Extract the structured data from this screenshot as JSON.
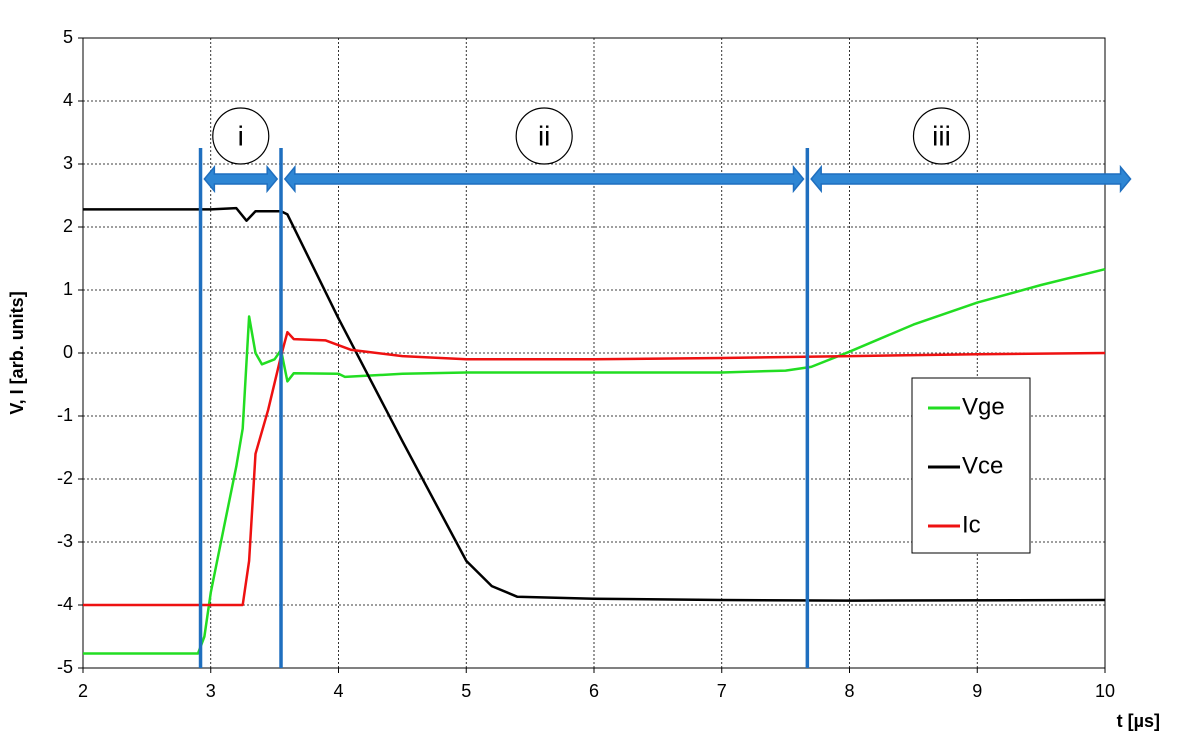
{
  "chart_data": {
    "type": "line",
    "x_label": "t [µs]",
    "y_label": "V, I [arb. units]",
    "xlim": [
      2,
      10
    ],
    "xticks": [
      2,
      3,
      4,
      5,
      6,
      7,
      8,
      9,
      10
    ],
    "ylim": [
      -5,
      5
    ],
    "yticks": [
      -5,
      -4,
      -3,
      -2,
      -1,
      0,
      1,
      2,
      3,
      4,
      5
    ],
    "grid": true,
    "series": [
      {
        "name": "Vge",
        "color": "#22dd22",
        "x": [
          2,
          2.9,
          2.95,
          3.0,
          3.1,
          3.2,
          3.25,
          3.3,
          3.35,
          3.4,
          3.5,
          3.55,
          3.6,
          3.65,
          4,
          4.05,
          4.5,
          5,
          6,
          7,
          7.5,
          7.7,
          8,
          8.5,
          9,
          9.5,
          10
        ],
        "values": [
          -4.77,
          -4.77,
          -4.5,
          -3.8,
          -2.8,
          -1.8,
          -1.2,
          0.58,
          0.0,
          -0.18,
          -0.1,
          0.05,
          -0.45,
          -0.32,
          -0.33,
          -0.38,
          -0.33,
          -0.31,
          -0.31,
          -0.31,
          -0.28,
          -0.22,
          0.02,
          0.45,
          0.8,
          1.08,
          1.33
        ]
      },
      {
        "name": "Vce",
        "color": "#000000",
        "x": [
          2,
          3,
          3.2,
          3.28,
          3.35,
          3.55,
          3.6,
          4,
          4.5,
          5,
          5.2,
          5.4,
          6,
          7,
          8,
          10
        ],
        "values": [
          2.28,
          2.28,
          2.3,
          2.1,
          2.25,
          2.25,
          2.2,
          0.55,
          -1.4,
          -3.3,
          -3.7,
          -3.87,
          -3.9,
          -3.92,
          -3.93,
          -3.92
        ]
      },
      {
        "name": "Ic",
        "color": "#ee1111",
        "x": [
          2,
          3.25,
          3.3,
          3.35,
          3.45,
          3.55,
          3.6,
          3.65,
          3.9,
          4.1,
          4.5,
          5,
          6,
          7,
          8,
          9,
          10
        ],
        "values": [
          -4.0,
          -4.0,
          -3.3,
          -1.6,
          -0.9,
          -0.05,
          0.33,
          0.22,
          0.2,
          0.05,
          -0.05,
          -0.1,
          -0.1,
          -0.08,
          -0.05,
          -0.02,
          0.0
        ]
      }
    ],
    "markers": [
      2.92,
      3.55,
      7.67
    ],
    "regions": [
      {
        "label": "i",
        "from": 2.95,
        "to": 3.52
      },
      {
        "label": "ii",
        "from": 3.58,
        "to": 7.64
      },
      {
        "label": "iii",
        "from": 7.7,
        "to": 10.2
      }
    ]
  }
}
